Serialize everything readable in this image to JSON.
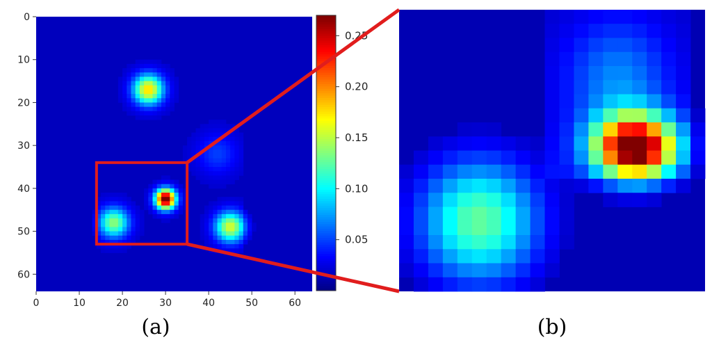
{
  "chart_data": [
    {
      "type": "heatmap",
      "panel_label": "(a)",
      "grid_size": [
        64,
        64
      ],
      "xlim": [
        0,
        64
      ],
      "ylim": [
        64,
        0
      ],
      "x_ticks": [
        0,
        10,
        20,
        30,
        40,
        50,
        60
      ],
      "y_ticks": [
        0,
        10,
        20,
        30,
        40,
        50,
        60
      ],
      "colormap": "jet",
      "value_range": [
        0,
        0.27
      ],
      "colorbar_ticks": [
        "0.05",
        "0.10",
        "0.15",
        "0.20",
        "0.25"
      ],
      "blobs": [
        {
          "x": 26,
          "y": 17,
          "peak": 0.16
        },
        {
          "x": 30,
          "y": 42.5,
          "peak": 0.27
        },
        {
          "x": 18,
          "y": 48,
          "peak": 0.12
        },
        {
          "x": 45,
          "y": 49,
          "peak": 0.14
        },
        {
          "x": 42,
          "y": 32,
          "peak": 0.03
        }
      ],
      "highlight_box": {
        "x": [
          14,
          35
        ],
        "y": [
          34,
          53
        ],
        "color": "#e11d1d"
      }
    },
    {
      "type": "heatmap",
      "panel_label": "(b)",
      "description_of_view": "zoom of the highlighted region of (a)",
      "grid_size": [
        21,
        20
      ],
      "colormap": "jet",
      "value_range": [
        0,
        0.27
      ],
      "blobs": [
        {
          "x": 16.2,
          "y": 9.8,
          "peak": 0.27
        },
        {
          "x": 5.5,
          "y": 15,
          "peak": 0.12
        }
      ]
    }
  ]
}
